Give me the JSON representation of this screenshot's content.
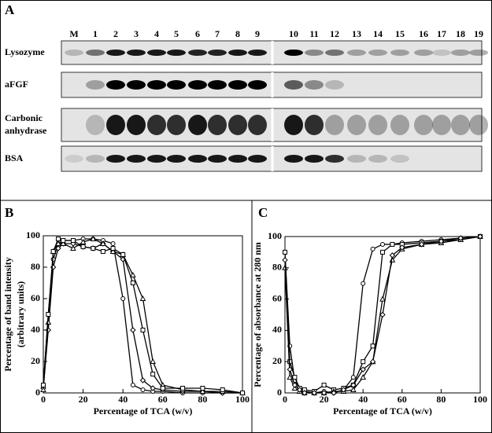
{
  "panel_a": {
    "label": "A",
    "lanes": [
      "M",
      "1",
      "2",
      "3",
      "4",
      "5",
      "6",
      "7",
      "8",
      "9",
      "10",
      "11",
      "12",
      "13",
      "14",
      "15",
      "16",
      "17",
      "18",
      "19"
    ],
    "rows": [
      {
        "lines": [
          "Lysozyme"
        ]
      },
      {
        "lines": [
          "aFGF"
        ]
      },
      {
        "lines": [
          "Carbonic",
          "anhydrase"
        ]
      },
      {
        "lines": [
          "BSA"
        ]
      }
    ]
  },
  "chart_data": [
    {
      "type": "line",
      "panel": "B",
      "xlabel": "Percentage of TCA (w/v)",
      "ylabel": [
        "Percentage of band intensity",
        "(arbitrary units)"
      ],
      "x": [
        0,
        2.5,
        5,
        7.5,
        10,
        15,
        20,
        25,
        30,
        35,
        40,
        45,
        50,
        55,
        60,
        70,
        80,
        90,
        100
      ],
      "series": [
        {
          "marker": "circle",
          "color": "#000000",
          "values": [
            5,
            50,
            85,
            95,
            97,
            97,
            98,
            98,
            97,
            95,
            60,
            5,
            2,
            1,
            1,
            0,
            0,
            0,
            0
          ]
        },
        {
          "marker": "diamond",
          "color": "#000000",
          "values": [
            3,
            40,
            80,
            92,
            95,
            95,
            93,
            92,
            95,
            90,
            85,
            40,
            8,
            3,
            2,
            1,
            1,
            0,
            0
          ]
        },
        {
          "marker": "triangle",
          "color": "#000000",
          "values": [
            2,
            45,
            90,
            95,
            95,
            92,
            96,
            98,
            95,
            90,
            88,
            75,
            60,
            20,
            5,
            2,
            1,
            1,
            0
          ]
        },
        {
          "marker": "square",
          "color": "#000000",
          "values": [
            5,
            50,
            90,
            98,
            97,
            97,
            93,
            92,
            90,
            92,
            88,
            70,
            40,
            12,
            3,
            3,
            3,
            2,
            0
          ]
        }
      ],
      "xlim": [
        0,
        100
      ],
      "ylim": [
        0,
        100
      ],
      "xticks": [
        0,
        20,
        40,
        60,
        80,
        100
      ],
      "yticks": [
        0,
        20,
        40,
        60,
        80,
        100
      ]
    },
    {
      "type": "line",
      "panel": "C",
      "xlabel": "Percentage of TCA (w/v)",
      "ylabel": [
        "Percentage of absorbance at 280 nm"
      ],
      "x": [
        0,
        2.5,
        5,
        7.5,
        10,
        15,
        20,
        25,
        30,
        35,
        40,
        45,
        50,
        55,
        60,
        70,
        80,
        90,
        100
      ],
      "series": [
        {
          "marker": "circle",
          "color": "#000000",
          "values": [
            90,
            30,
            8,
            3,
            1,
            0,
            1,
            0,
            2,
            10,
            70,
            92,
            95,
            95,
            96,
            97,
            98,
            99,
            100
          ]
        },
        {
          "marker": "square",
          "color": "#000000",
          "values": [
            90,
            20,
            10,
            3,
            2,
            1,
            5,
            2,
            3,
            5,
            20,
            30,
            90,
            95,
            95,
            96,
            97,
            98,
            100
          ]
        },
        {
          "marker": "triangle",
          "color": "#000000",
          "values": [
            80,
            10,
            3,
            1,
            0,
            0,
            0,
            1,
            1,
            2,
            10,
            20,
            60,
            85,
            92,
            95,
            96,
            98,
            100
          ]
        },
        {
          "marker": "diamond",
          "color": "#000000",
          "values": [
            85,
            15,
            5,
            2,
            0,
            0,
            0,
            0,
            2,
            5,
            15,
            20,
            50,
            88,
            93,
            95,
            97,
            99,
            100
          ]
        }
      ],
      "xlim": [
        0,
        100
      ],
      "ylim": [
        0,
        100
      ],
      "xticks": [
        0,
        20,
        40,
        60,
        80,
        100
      ],
      "yticks": [
        0,
        20,
        40,
        60,
        80,
        100
      ]
    }
  ]
}
